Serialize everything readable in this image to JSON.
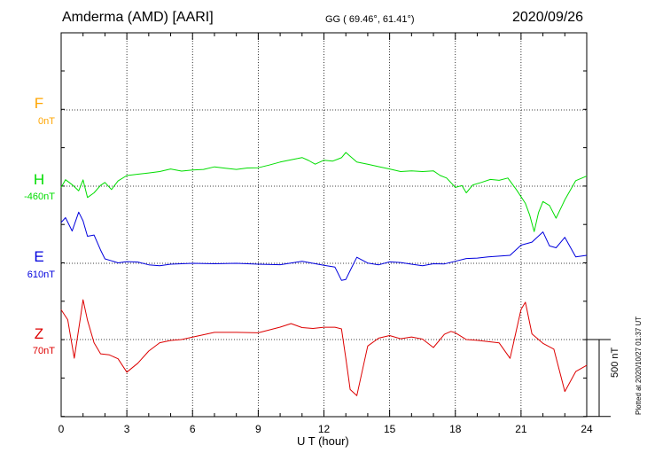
{
  "header": {
    "title": "Amderma (AMD)  [AARI]",
    "coords": "GG ( 69.46°,  61.41°)",
    "date": "2020/09/26"
  },
  "footer": "Plotted at 2020/10/27 01:37 UT",
  "scale_label": "500 nT",
  "colors": {
    "F": "#ffa500",
    "H": "#00dd00",
    "E": "#0000dd",
    "Z": "#dd0000"
  },
  "chart_data": {
    "type": "line",
    "xlabel": "U T (hour)",
    "xlim": [
      0,
      24
    ],
    "xticks": [
      "0",
      "3",
      "6",
      "9",
      "12",
      "15",
      "18",
      "21",
      "24"
    ],
    "scale_bar_nT": 500,
    "grid": true,
    "series": [
      {
        "name": "F",
        "baseline": "0nT",
        "x": [],
        "y": []
      },
      {
        "name": "H",
        "baseline": "-460nT",
        "x": [
          0,
          0.2,
          0.5,
          0.8,
          1.0,
          1.2,
          1.5,
          1.8,
          2.0,
          2.3,
          2.6,
          3.0,
          3.5,
          4.0,
          4.5,
          5.0,
          5.5,
          6.0,
          6.5,
          7.0,
          7.5,
          8.0,
          8.5,
          9.0,
          9.5,
          10.0,
          10.5,
          10.8,
          11.0,
          11.3,
          11.6,
          12.0,
          12.4,
          12.8,
          13.0,
          13.2,
          13.5,
          14.0,
          14.5,
          15.0,
          15.5,
          16.0,
          16.5,
          17.0,
          17.3,
          17.6,
          18.0,
          18.3,
          18.5,
          18.8,
          19.2,
          19.6,
          20.0,
          20.4,
          20.8,
          21.2,
          21.4,
          21.6,
          21.8,
          22.0,
          22.3,
          22.6,
          23.0,
          23.5,
          24.0
        ],
        "y": [
          -8,
          42,
          10,
          -30,
          41,
          -74,
          -43,
          5,
          24,
          -22,
          34,
          69,
          78,
          86,
          95,
          112,
          98,
          105,
          109,
          126,
          117,
          109,
          118,
          120,
          137,
          157,
          171,
          180,
          186,
          167,
          143,
          169,
          163,
          185,
          219,
          195,
          157,
          143,
          127,
          112,
          95,
          100,
          95,
          100,
          70,
          53,
          -8,
          4,
          -43,
          8,
          25,
          44,
          38,
          53,
          -25,
          -112,
          -191,
          -296,
          -172,
          -100,
          -126,
          -208,
          -89,
          36,
          66
        ]
      },
      {
        "name": "E",
        "baseline": "610nT",
        "x": [
          0,
          0.2,
          0.5,
          0.8,
          1.0,
          1.2,
          1.5,
          1.8,
          2.0,
          2.3,
          2.6,
          3.0,
          3.5,
          4.0,
          4.5,
          5.0,
          6.0,
          7.0,
          8.0,
          9.0,
          10.0,
          11.0,
          11.5,
          12.0,
          12.5,
          12.8,
          13.0,
          13.2,
          13.5,
          14.0,
          14.5,
          15.0,
          15.5,
          16.0,
          16.5,
          17.0,
          17.5,
          18.0,
          18.5,
          19.0,
          19.5,
          20.0,
          20.5,
          21.0,
          21.5,
          22.0,
          22.3,
          22.6,
          23.0,
          23.5,
          24.0
        ],
        "y": [
          266,
          297,
          210,
          333,
          276,
          176,
          184,
          86,
          29,
          16,
          3,
          11,
          8,
          -10,
          -16,
          -6,
          0,
          -3,
          0,
          -6,
          -9,
          13,
          0,
          -13,
          -25,
          -111,
          -105,
          -47,
          39,
          2,
          -10,
          9,
          5,
          -6,
          -16,
          -3,
          -4,
          13,
          31,
          34,
          42,
          47,
          52,
          118,
          138,
          204,
          113,
          101,
          169,
          42,
          52
        ]
      },
      {
        "name": "Z",
        "baseline": "70nT",
        "x": [
          0,
          0.3,
          0.6,
          0.9,
          1.0,
          1.2,
          1.5,
          1.8,
          2.2,
          2.6,
          3.0,
          3.5,
          4.0,
          4.5,
          5.0,
          5.5,
          6.0,
          7.0,
          8.0,
          9.0,
          10.0,
          10.5,
          11.0,
          11.5,
          12.0,
          12.5,
          12.8,
          13.0,
          13.2,
          13.5,
          14.0,
          14.5,
          15.0,
          15.5,
          16.0,
          16.5,
          17.0,
          17.5,
          17.8,
          18.0,
          18.5,
          19.0,
          20.0,
          20.5,
          21.0,
          21.2,
          21.5,
          22.0,
          22.5,
          23.0,
          23.5,
          24.0
        ],
        "y": [
          194,
          129,
          -121,
          160,
          259,
          126,
          -21,
          -93,
          -100,
          -125,
          -212,
          -154,
          -75,
          -21,
          -6,
          0,
          16,
          47,
          47,
          44,
          81,
          104,
          78,
          72,
          80,
          80,
          69,
          -122,
          -325,
          -365,
          -42,
          9,
          26,
          5,
          17,
          3,
          -52,
          34,
          53,
          44,
          0,
          -5,
          -22,
          -122,
          196,
          243,
          37,
          -25,
          -62,
          -338,
          -208,
          -168
        ]
      }
    ]
  }
}
